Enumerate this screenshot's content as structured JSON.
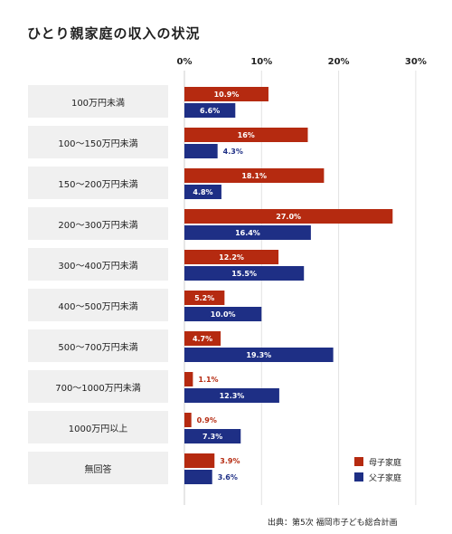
{
  "chart_data": {
    "type": "bar",
    "orientation": "horizontal",
    "title": "ひとり親家庭の収入の状況",
    "categories": [
      "100万円未満",
      "100〜150万円未満",
      "150〜200万円未満",
      "200〜300万円未満",
      "300〜400万円未満",
      "400〜500万円未満",
      "500〜700万円未満",
      "700〜1000万円未満",
      "1000万円以上",
      "無回答"
    ],
    "series": [
      {
        "name": "母子家庭",
        "color": "#b52a10",
        "values": [
          10.9,
          16,
          18.1,
          27.0,
          12.2,
          5.2,
          4.7,
          1.1,
          0.9,
          3.9
        ],
        "labels": [
          "10.9%",
          "16%",
          "18.1%",
          "27.0%",
          "12.2%",
          "5.2%",
          "4.7%",
          "1.1%",
          "0.9%",
          "3.9%"
        ]
      },
      {
        "name": "父子家庭",
        "color": "#1e2f85",
        "values": [
          6.6,
          4.3,
          4.8,
          16.4,
          15.5,
          10.0,
          19.3,
          12.3,
          7.3,
          3.6
        ],
        "labels": [
          "6.6%",
          "4.3%",
          "4.8%",
          "16.4%",
          "15.5%",
          "10.0%",
          "19.3%",
          "12.3%",
          "7.3%",
          "3.6%"
        ]
      }
    ],
    "xlim": [
      0,
      30
    ],
    "xticks": [
      "0%",
      "10%",
      "20%",
      "30%"
    ],
    "grid": true,
    "legend_position": "bottom-right",
    "source": "出典：第5次 福岡市子ども総合計画"
  }
}
